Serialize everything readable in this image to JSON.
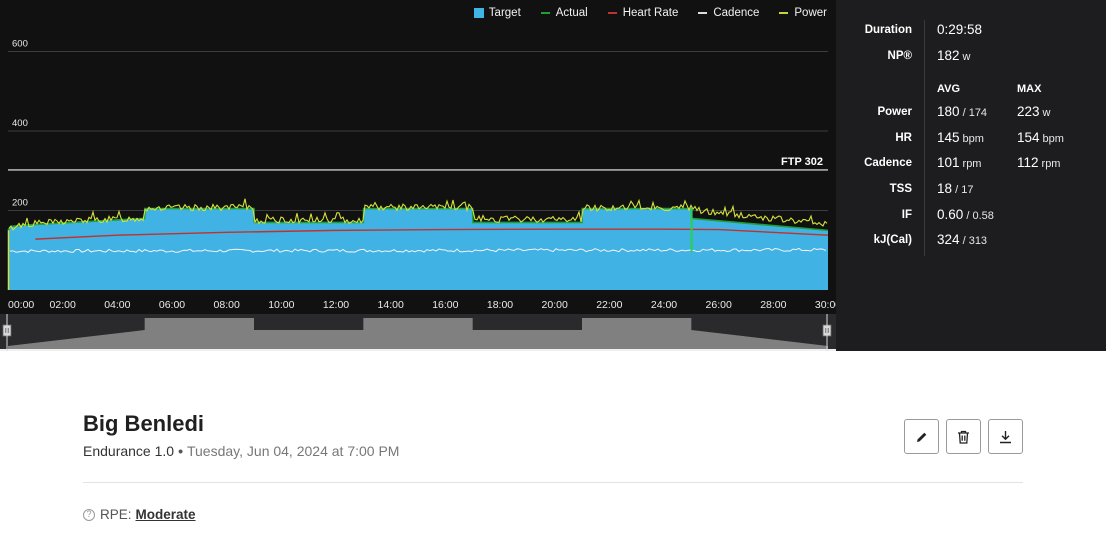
{
  "legend": [
    {
      "label": "Target",
      "color": "#3fb4e6",
      "kind": "box"
    },
    {
      "label": "Actual",
      "color": "#1e9e35",
      "kind": "line"
    },
    {
      "label": "Heart Rate",
      "color": "#c0322d",
      "kind": "line"
    },
    {
      "label": "Cadence",
      "color": "#dddddd",
      "kind": "line"
    },
    {
      "label": "Power",
      "color": "#c8d23a",
      "kind": "line"
    }
  ],
  "ftp_label": "FTP 302",
  "chart_data": {
    "type": "area",
    "x_unit": "minutes",
    "x_ticks": [
      "00:00",
      "02:00",
      "04:00",
      "06:00",
      "08:00",
      "10:00",
      "12:00",
      "14:00",
      "16:00",
      "18:00",
      "20:00",
      "22:00",
      "24:00",
      "26:00",
      "28:00",
      "30:00"
    ],
    "y_ticks": [
      "200",
      "400",
      "600"
    ],
    "ylim": [
      0,
      650
    ],
    "xlim": [
      0,
      30
    ],
    "ftp": 302,
    "target": {
      "x": [
        0,
        0.1,
        1,
        5,
        5.01,
        9,
        9.01,
        13,
        13.01,
        17,
        17.01,
        21,
        21.01,
        25,
        25.01,
        30
      ],
      "y": [
        150,
        160,
        165,
        180,
        205,
        205,
        170,
        170,
        205,
        205,
        170,
        170,
        205,
        205,
        180,
        150
      ]
    },
    "actual": {
      "x": [
        0,
        0.1,
        1,
        5,
        5.01,
        9,
        9.01,
        13,
        13.01,
        17,
        17.01,
        21,
        21.01,
        25,
        25.01,
        30
      ],
      "y": [
        150,
        160,
        165,
        180,
        205,
        205,
        170,
        170,
        205,
        205,
        170,
        170,
        205,
        205,
        180,
        150
      ]
    },
    "power_avg": {
      "x": [
        0,
        0.3,
        1,
        2,
        3,
        4,
        5,
        5.01,
        9,
        9.01,
        13,
        13.01,
        17,
        17.01,
        21,
        21.01,
        25,
        25.5,
        30
      ],
      "y": [
        150,
        162,
        168,
        172,
        176,
        178,
        180,
        206,
        208,
        175,
        176,
        208,
        208,
        178,
        178,
        207,
        206,
        198,
        165
      ]
    },
    "heart_rate": {
      "x": [
        1,
        4,
        8,
        12,
        16,
        20,
        24,
        26,
        30
      ],
      "y": [
        128,
        138,
        145,
        150,
        152,
        153,
        153,
        152,
        138
      ]
    },
    "cadence": {
      "x": [
        0,
        30
      ],
      "y": [
        98,
        101
      ]
    }
  },
  "stats": {
    "duration_label": "Duration",
    "duration_value": "0:29:58",
    "np_label": "NP®",
    "np_value": "182",
    "np_unit": "w",
    "avg_header": "AVG",
    "max_header": "MAX",
    "rows": [
      {
        "label": "Power",
        "avg": "180",
        "avg_sub": " / 174",
        "avg_unit": "",
        "max": "223",
        "max_unit": "w"
      },
      {
        "label": "HR",
        "avg": "145",
        "avg_sub": "",
        "avg_unit": "bpm",
        "max": "154",
        "max_unit": "bpm"
      },
      {
        "label": "Cadence",
        "avg": "101",
        "avg_sub": "",
        "avg_unit": "rpm",
        "max": "112",
        "max_unit": "rpm"
      },
      {
        "label": "TSS",
        "avg": "18",
        "avg_sub": " / 17",
        "avg_unit": "",
        "max": "",
        "max_unit": ""
      },
      {
        "label": "IF",
        "avg": "0.60",
        "avg_sub": " / 0.58",
        "avg_unit": "",
        "max": "",
        "max_unit": ""
      },
      {
        "label": "kJ(Cal)",
        "avg": "324",
        "avg_sub": " / 313",
        "avg_unit": "",
        "max": "",
        "max_unit": ""
      }
    ]
  },
  "workout": {
    "title": "Big Benledi",
    "plan": "Endurance 1.0",
    "separator": "•",
    "date": "Tuesday, Jun 04, 2024 at 7:00 PM"
  },
  "actions": {
    "edit_icon": "pencil-icon",
    "delete_icon": "trash-icon",
    "download_icon": "download-icon"
  },
  "rpe": {
    "help_icon": "?",
    "label": "RPE:",
    "value": "Moderate"
  }
}
